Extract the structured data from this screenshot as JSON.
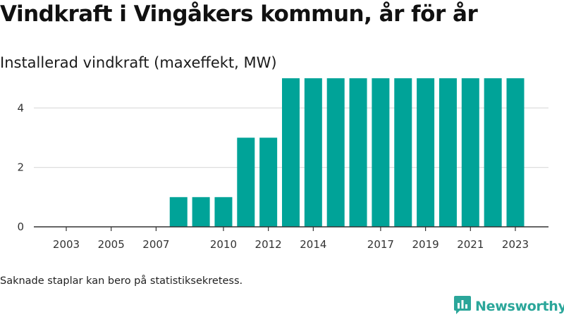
{
  "header": {
    "title": "Vindkraft i Vingåkers kommun, år för år",
    "subtitle": "Installerad vindkraft (maxeffekt, MW)"
  },
  "footer": {
    "note": "Saknade staplar kan bero på statistiksekretess.",
    "brand": "Newsworthy"
  },
  "colors": {
    "bar": "#00a398",
    "grid": "#dddddd",
    "axis": "#333333",
    "brand": "#2ba69a"
  },
  "icons": {
    "brand_logo": "bar-chart-speech-bubble-icon"
  },
  "chart_data": {
    "type": "bar",
    "title": "Vindkraft i Vingåkers kommun, år för år",
    "subtitle": "Installerad vindkraft (maxeffekt, MW)",
    "categories": [
      "2003",
      "2004",
      "2005",
      "2006",
      "2007",
      "2008",
      "2009",
      "2010",
      "2011",
      "2012",
      "2013",
      "2014",
      "2015",
      "2016",
      "2017",
      "2018",
      "2019",
      "2020",
      "2021",
      "2022",
      "2023"
    ],
    "x_tick_labels": [
      "2003",
      "2005",
      "2007",
      "2010",
      "2012",
      "2014",
      "2017",
      "2019",
      "2021",
      "2023"
    ],
    "values": [
      0,
      0,
      0,
      0,
      0,
      1,
      1,
      1,
      3,
      3,
      5,
      5,
      5,
      5,
      5,
      5,
      5,
      5,
      5,
      5,
      5
    ],
    "ylim": [
      0,
      5.5
    ],
    "y_ticks": [
      0,
      2,
      4
    ],
    "xlabel": "",
    "ylabel": "",
    "grid": true
  }
}
